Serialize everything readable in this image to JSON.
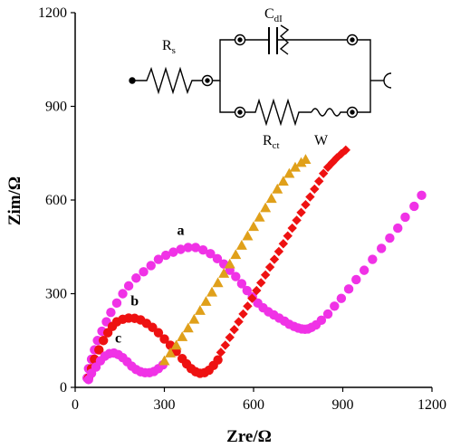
{
  "chart_data": {
    "type": "scatter",
    "xlabel": "Zre/Ω",
    "ylabel": "Zim/Ω",
    "xlim": [
      0,
      1200
    ],
    "ylim": [
      0,
      1200
    ],
    "xticks": [
      0,
      300,
      600,
      900,
      1200
    ],
    "yticks": [
      0,
      300,
      600,
      900,
      1200
    ],
    "grid": false,
    "series": [
      {
        "name": "a",
        "marker": "circle",
        "color": "#f032e6",
        "x": [
          40,
          45,
          55,
          65,
          75,
          90,
          105,
          120,
          140,
          160,
          180,
          205,
          230,
          255,
          280,
          305,
          330,
          355,
          380,
          405,
          430,
          455,
          478,
          500,
          520,
          540,
          560,
          578,
          596,
          614,
          632,
          650,
          668,
          686,
          704,
          720,
          736,
          750,
          762,
          773,
          783,
          795,
          810,
          828,
          850,
          872,
          895,
          920,
          945,
          972,
          1000,
          1030,
          1058,
          1085,
          1110,
          1140,
          1165
        ],
        "y": [
          30,
          60,
          90,
          120,
          150,
          180,
          210,
          240,
          270,
          300,
          325,
          350,
          370,
          390,
          410,
          423,
          433,
          442,
          448,
          448,
          440,
          428,
          412,
          395,
          375,
          355,
          332,
          310,
          290,
          270,
          255,
          242,
          232,
          222,
          212,
          202,
          195,
          190,
          187,
          186,
          187,
          192,
          200,
          215,
          235,
          260,
          285,
          315,
          345,
          375,
          410,
          445,
          478,
          510,
          545,
          580,
          615
        ]
      },
      {
        "name": "b",
        "marker": "circle",
        "color": "#ee1111",
        "x": [
          45,
          55,
          65,
          80,
          95,
          110,
          125,
          140,
          160,
          180,
          200,
          220,
          240,
          260,
          280,
          300,
          320,
          340,
          360,
          375,
          390,
          405,
          420,
          435,
          450,
          465,
          480
        ],
        "y": [
          30,
          60,
          90,
          120,
          150,
          175,
          195,
          210,
          218,
          222,
          221,
          216,
          205,
          192,
          175,
          155,
          135,
          115,
          92,
          75,
          60,
          50,
          45,
          47,
          55,
          70,
          88
        ]
      },
      {
        "name": "",
        "marker": "diamond",
        "color": "#ee1111",
        "x": [
          490,
          505,
          520,
          535,
          550,
          565,
          580,
          595,
          610,
          625,
          640,
          655,
          670,
          685,
          700,
          715,
          730,
          745,
          760,
          775,
          790,
          805,
          820,
          835,
          850,
          865,
          880,
          895,
          910
        ],
        "y": [
          112,
          135,
          160,
          185,
          210,
          235,
          260,
          285,
          310,
          335,
          360,
          385,
          410,
          435,
          460,
          485,
          510,
          535,
          560,
          585,
          610,
          635,
          660,
          685,
          705,
          720,
          735,
          748,
          760
        ]
      },
      {
        "name": "c",
        "marker": "circle",
        "color": "#f032e6",
        "x": [
          45,
          55,
          70,
          85,
          100,
          115,
          130,
          145,
          160,
          175,
          190,
          205,
          220,
          235,
          250,
          265,
          280,
          295
        ],
        "y": [
          25,
          45,
          65,
          85,
          100,
          108,
          110,
          105,
          95,
          82,
          68,
          57,
          50,
          47,
          47,
          51,
          60,
          72
        ]
      },
      {
        "name": "",
        "marker": "triangle",
        "color": "#e0a01a",
        "x": [
          300,
          320,
          340,
          360,
          380,
          400,
          420,
          440,
          460,
          480,
          500,
          520,
          540,
          560,
          580,
          600,
          620,
          640,
          660,
          680,
          700,
          720,
          740,
          760,
          775
        ],
        "y": [
          85,
          110,
          135,
          162,
          190,
          218,
          246,
          275,
          305,
          335,
          365,
          395,
          425,
          455,
          485,
          515,
          545,
          575,
          605,
          635,
          660,
          685,
          705,
          720,
          730
        ]
      }
    ],
    "annotations": [
      {
        "text": "a",
        "x": 355,
        "y": 488
      },
      {
        "text": "b",
        "x": 200,
        "y": 263
      },
      {
        "text": "c",
        "x": 145,
        "y": 143
      }
    ]
  },
  "circuit": {
    "rs": "R",
    "rs_sub": "s",
    "cdl": "C",
    "cdl_sub": "dI",
    "rct": "R",
    "rct_sub": "ct",
    "w": "W"
  }
}
